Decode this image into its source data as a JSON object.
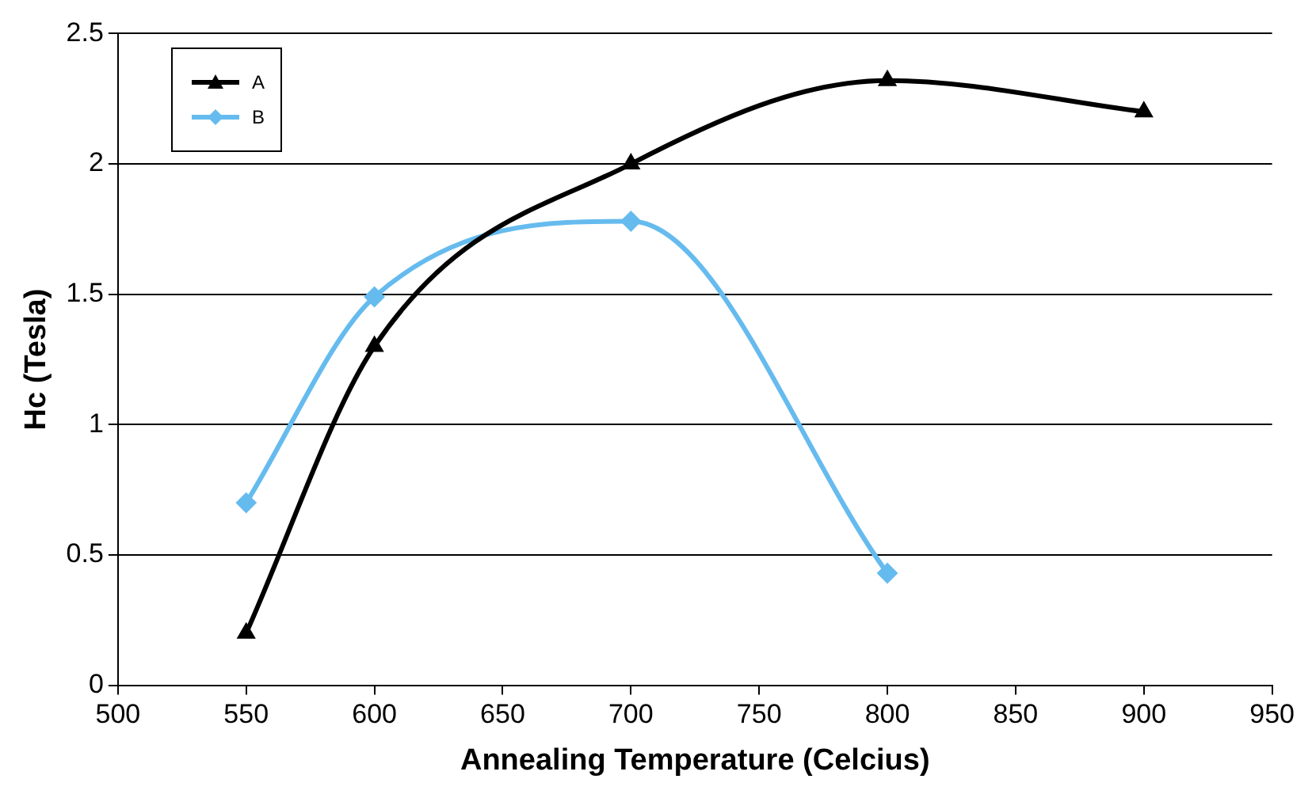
{
  "chart_data": {
    "type": "line",
    "xlabel": "Annealing Temperature (Celcius)",
    "ylabel": "Hc (Tesla)",
    "xlim": [
      500,
      950
    ],
    "xticks": [
      500,
      550,
      600,
      650,
      700,
      750,
      800,
      850,
      900,
      950
    ],
    "ylim": [
      0,
      2.5
    ],
    "yticks": [
      0,
      0.5,
      1,
      1.5,
      2,
      2.5
    ],
    "grid": "y",
    "legend": "top left",
    "series": [
      {
        "name": "A",
        "color": "#000000",
        "marker": "triangle",
        "x": [
          550,
          600,
          700,
          800,
          900
        ],
        "values": [
          0.2,
          1.3,
          2.0,
          2.32,
          2.2
        ]
      },
      {
        "name": "B",
        "color": "#66bbee",
        "marker": "diamond",
        "x": [
          550,
          600,
          700,
          800
        ],
        "values": [
          0.7,
          1.49,
          1.78,
          0.43
        ]
      }
    ]
  }
}
